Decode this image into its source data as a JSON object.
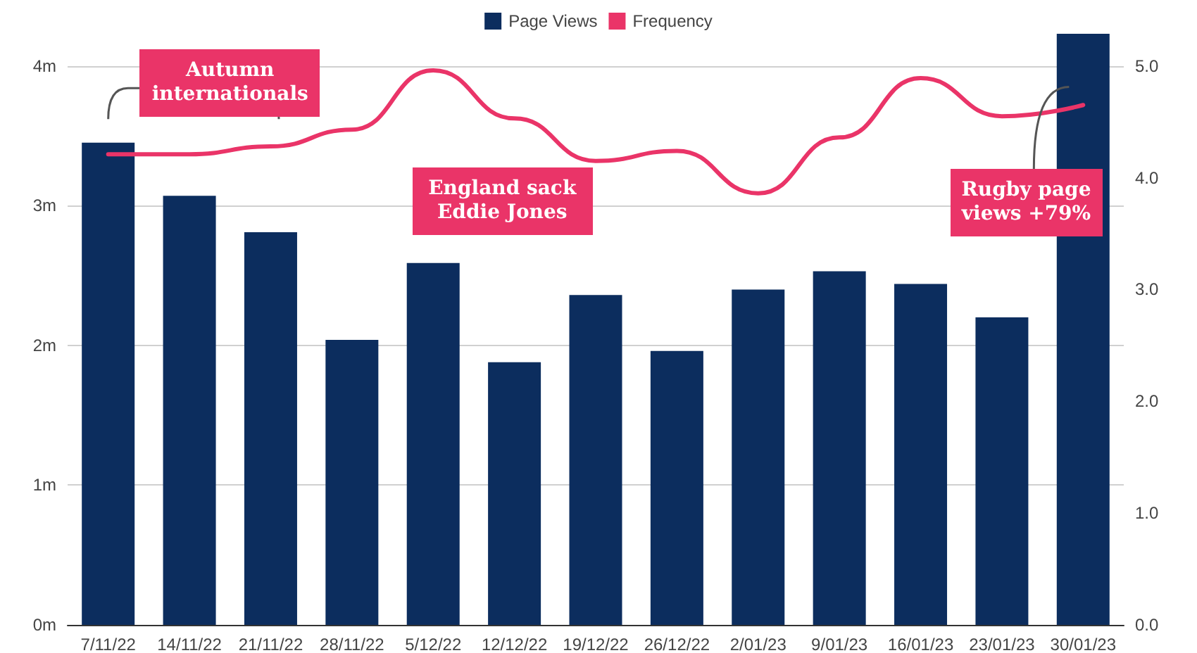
{
  "chart_data": {
    "type": "bar",
    "categories": [
      "7/11/22",
      "14/11/22",
      "21/11/22",
      "28/11/22",
      "5/12/22",
      "12/12/22",
      "19/12/22",
      "26/12/22",
      "2/01/23",
      "9/01/23",
      "16/01/23",
      "23/01/23",
      "30/01/23"
    ],
    "series": [
      {
        "name": "Page Views",
        "color": "#0c2d5e",
        "values": [
          3.45,
          3.07,
          2.81,
          2.04,
          2.59,
          1.88,
          2.36,
          1.96,
          2.4,
          2.53,
          2.44,
          2.2,
          4.23
        ]
      },
      {
        "name": "Frequency",
        "type": "line",
        "axis": "y2",
        "color": "#ea3468",
        "values": [
          4.21,
          4.21,
          4.28,
          4.43,
          4.96,
          4.53,
          4.15,
          4.24,
          3.86,
          4.36,
          4.89,
          4.55,
          4.65
        ]
      }
    ],
    "ylim": [
      0,
      4.25
    ],
    "yticks": [
      {
        "value": 0,
        "label": "0m"
      },
      {
        "value": 1,
        "label": "1m"
      },
      {
        "value": 2,
        "label": "2m"
      },
      {
        "value": 3,
        "label": "3m"
      },
      {
        "value": 4,
        "label": "4m"
      }
    ],
    "y2lim": [
      0,
      5.3125
    ],
    "y2ticks": [
      {
        "value": 0,
        "label": "0.0"
      },
      {
        "value": 1,
        "label": "1.0"
      },
      {
        "value": 2,
        "label": "2.0"
      },
      {
        "value": 3,
        "label": "3.0"
      },
      {
        "value": 4,
        "label": "4.0"
      },
      {
        "value": 5,
        "label": "5.0"
      }
    ],
    "annotations": [
      "Autumn internationals",
      "England sack Eddie Jones",
      "Rugby page views +79%"
    ],
    "grid": "y",
    "legend": "top",
    "marker": "none",
    "line_style": "solid"
  }
}
